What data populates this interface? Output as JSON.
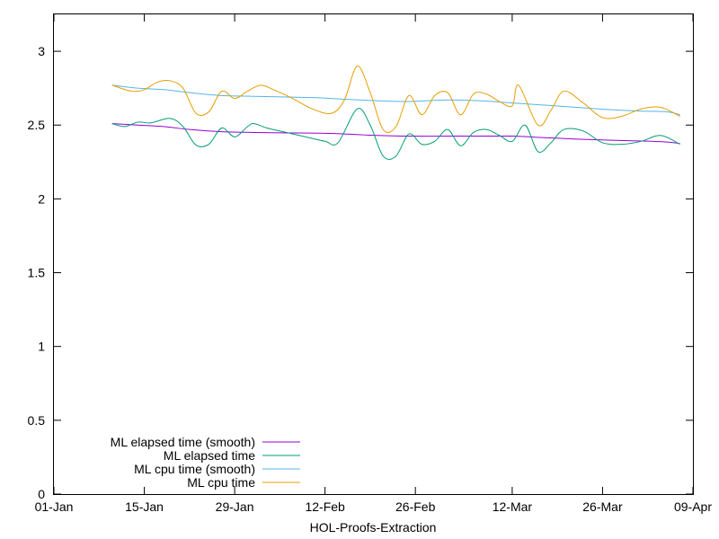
{
  "chart_data": {
    "type": "line",
    "title": "",
    "xlabel": "HOL-Proofs-Extraction",
    "ylabel": "",
    "x_range": [
      "01-Jan",
      "09-Apr"
    ],
    "ylim": [
      0,
      3.25
    ],
    "x_ticks": [
      "01-Jan",
      "15-Jan",
      "29-Jan",
      "12-Feb",
      "26-Feb",
      "12-Mar",
      "26-Mar",
      "09-Apr"
    ],
    "y_ticks": [
      "0",
      "0.5",
      "1",
      "1.5",
      "2",
      "2.5",
      "3"
    ],
    "grid": false,
    "legend_position": "bottom-left",
    "series": [
      {
        "name": "ML elapsed time (smooth)",
        "color": "#9400d3",
        "points": [
          [
            "10-Jan",
            2.51
          ],
          [
            "14-Jan",
            2.5
          ],
          [
            "18-Jan",
            2.49
          ],
          [
            "22-Jan",
            2.47
          ],
          [
            "27-Jan",
            2.455
          ],
          [
            "01-Feb",
            2.45
          ],
          [
            "06-Feb",
            2.447
          ],
          [
            "11-Feb",
            2.445
          ],
          [
            "15-Feb",
            2.44
          ],
          [
            "20-Feb",
            2.43
          ],
          [
            "25-Feb",
            2.425
          ],
          [
            "02-Mar",
            2.425
          ],
          [
            "07-Mar",
            2.425
          ],
          [
            "12-Mar",
            2.425
          ],
          [
            "17-Mar",
            2.415
          ],
          [
            "22-Mar",
            2.405
          ],
          [
            "27-Mar",
            2.398
          ],
          [
            "01-Apr",
            2.392
          ],
          [
            "05-Apr",
            2.385
          ],
          [
            "07-Apr",
            2.375
          ]
        ]
      },
      {
        "name": "ML elapsed time",
        "color": "#009e73",
        "points": [
          [
            "10-Jan",
            2.51
          ],
          [
            "12-Jan",
            2.49
          ],
          [
            "14-Jan",
            2.52
          ],
          [
            "16-Jan",
            2.515
          ],
          [
            "19-Jan",
            2.545
          ],
          [
            "21-Jan",
            2.49
          ],
          [
            "23-Jan",
            2.365
          ],
          [
            "25-Jan",
            2.37
          ],
          [
            "27-Jan",
            2.48
          ],
          [
            "29-Jan",
            2.42
          ],
          [
            "31-Jan",
            2.49
          ],
          [
            "01-Feb",
            2.51
          ],
          [
            "03-Feb",
            2.48
          ],
          [
            "06-Feb",
            2.45
          ],
          [
            "09-Feb",
            2.42
          ],
          [
            "12-Feb",
            2.39
          ],
          [
            "14-Feb",
            2.38
          ],
          [
            "17-Feb",
            2.61
          ],
          [
            "19-Feb",
            2.5
          ],
          [
            "21-Feb",
            2.29
          ],
          [
            "23-Feb",
            2.29
          ],
          [
            "25-Feb",
            2.44
          ],
          [
            "27-Feb",
            2.37
          ],
          [
            "29-Feb",
            2.39
          ],
          [
            "02-Mar",
            2.47
          ],
          [
            "04-Mar",
            2.36
          ],
          [
            "06-Mar",
            2.45
          ],
          [
            "08-Mar",
            2.47
          ],
          [
            "10-Mar",
            2.43
          ],
          [
            "12-Mar",
            2.39
          ],
          [
            "14-Mar",
            2.5
          ],
          [
            "16-Mar",
            2.32
          ],
          [
            "18-Mar",
            2.38
          ],
          [
            "20-Mar",
            2.47
          ],
          [
            "23-Mar",
            2.46
          ],
          [
            "26-Mar",
            2.38
          ],
          [
            "29-Mar",
            2.37
          ],
          [
            "01-Apr",
            2.39
          ],
          [
            "04-Apr",
            2.43
          ],
          [
            "07-Apr",
            2.37
          ]
        ]
      },
      {
        "name": "ML cpu time (smooth)",
        "color": "#56b4e9",
        "points": [
          [
            "10-Jan",
            2.77
          ],
          [
            "14-Jan",
            2.75
          ],
          [
            "18-Jan",
            2.74
          ],
          [
            "22-Jan",
            2.72
          ],
          [
            "27-Jan",
            2.7
          ],
          [
            "01-Feb",
            2.695
          ],
          [
            "06-Feb",
            2.69
          ],
          [
            "11-Feb",
            2.685
          ],
          [
            "15-Feb",
            2.675
          ],
          [
            "20-Feb",
            2.665
          ],
          [
            "25-Feb",
            2.66
          ],
          [
            "02-Mar",
            2.67
          ],
          [
            "07-Mar",
            2.665
          ],
          [
            "12-Mar",
            2.65
          ],
          [
            "17-Mar",
            2.635
          ],
          [
            "22-Mar",
            2.62
          ],
          [
            "27-Mar",
            2.605
          ],
          [
            "01-Apr",
            2.595
          ],
          [
            "05-Apr",
            2.59
          ],
          [
            "07-Apr",
            2.57
          ]
        ]
      },
      {
        "name": "ML cpu time",
        "color": "#e69f00",
        "points": [
          [
            "10-Jan",
            2.77
          ],
          [
            "13-Jan",
            2.73
          ],
          [
            "15-Jan",
            2.74
          ],
          [
            "17-Jan",
            2.79
          ],
          [
            "19-Jan",
            2.8
          ],
          [
            "21-Jan",
            2.75
          ],
          [
            "23-Jan",
            2.58
          ],
          [
            "25-Jan",
            2.59
          ],
          [
            "27-Jan",
            2.73
          ],
          [
            "29-Jan",
            2.68
          ],
          [
            "31-Jan",
            2.73
          ],
          [
            "02-Feb",
            2.77
          ],
          [
            "04-Feb",
            2.74
          ],
          [
            "07-Feb",
            2.68
          ],
          [
            "10-Feb",
            2.61
          ],
          [
            "13-Feb",
            2.58
          ],
          [
            "15-Feb",
            2.67
          ],
          [
            "17-Feb",
            2.9
          ],
          [
            "19-Feb",
            2.72
          ],
          [
            "21-Feb",
            2.47
          ],
          [
            "23-Feb",
            2.49
          ],
          [
            "25-Feb",
            2.7
          ],
          [
            "27-Feb",
            2.57
          ],
          [
            "29-Feb",
            2.7
          ],
          [
            "02-Mar",
            2.72
          ],
          [
            "04-Mar",
            2.57
          ],
          [
            "06-Mar",
            2.71
          ],
          [
            "08-Mar",
            2.71
          ],
          [
            "10-Mar",
            2.66
          ],
          [
            "12-Mar",
            2.63
          ],
          [
            "13-Mar",
            2.77
          ],
          [
            "16-Mar",
            2.5
          ],
          [
            "18-Mar",
            2.6
          ],
          [
            "20-Mar",
            2.73
          ],
          [
            "23-Mar",
            2.65
          ],
          [
            "26-Mar",
            2.55
          ],
          [
            "29-Mar",
            2.56
          ],
          [
            "01-Apr",
            2.61
          ],
          [
            "04-Apr",
            2.62
          ],
          [
            "07-Apr",
            2.56
          ]
        ]
      }
    ]
  }
}
